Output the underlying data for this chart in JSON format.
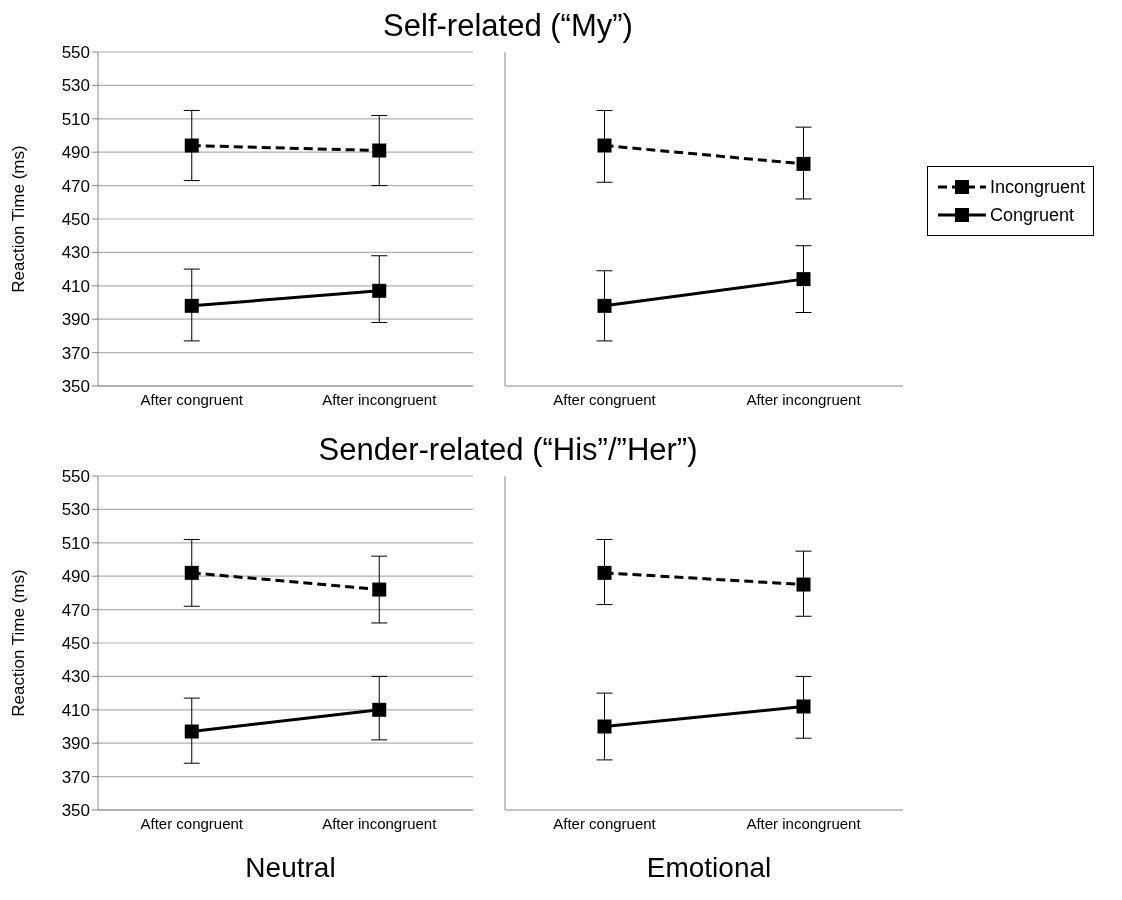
{
  "chart_data": [
    {
      "type": "line",
      "title": "Self-related (“My”)",
      "ylabel": "Reaction Time (ms)",
      "categories": [
        "After congruent",
        "After incongruent"
      ],
      "ylim": [
        350,
        550
      ],
      "yticks": [
        350,
        370,
        390,
        410,
        430,
        450,
        470,
        490,
        510,
        530,
        550
      ],
      "grid": "y",
      "marker": "square",
      "legend": false,
      "series": [
        {
          "color": "#000000",
          "line_style": "dashed",
          "values": [
            494,
            491
          ],
          "errors": [
            [
              473,
              515
            ],
            [
              470,
              512
            ]
          ]
        },
        {
          "color": "#000000",
          "line_style": "solid",
          "values": [
            398,
            407
          ],
          "errors": [
            [
              377,
              420
            ],
            [
              388,
              428
            ]
          ]
        }
      ]
    },
    {
      "type": "line",
      "categories": [
        "After congruent",
        "After incongruent"
      ],
      "ylim": [
        350,
        550
      ],
      "yticks": [
        350,
        370,
        390,
        410,
        430,
        450,
        470,
        490,
        510,
        530,
        550
      ],
      "tick_labels": "x",
      "grid": "y",
      "marker": "square",
      "legend": "right",
      "series": [
        {
          "name": "Incongruent",
          "color": "#000000",
          "line_style": "dashed",
          "values": [
            494,
            483
          ],
          "errors": [
            [
              472,
              515
            ],
            [
              462,
              505
            ]
          ]
        },
        {
          "name": "Congruent",
          "color": "#000000",
          "line_style": "solid",
          "values": [
            398,
            414
          ],
          "errors": [
            [
              377,
              419
            ],
            [
              394,
              434
            ]
          ]
        }
      ]
    },
    {
      "type": "line",
      "title": "Sender-related (“His”/”Her”)",
      "ylabel": "Reaction Time (ms)",
      "xlabel": "Neutral",
      "categories": [
        "After congruent",
        "After incongruent"
      ],
      "ylim": [
        350,
        550
      ],
      "yticks": [
        350,
        370,
        390,
        410,
        430,
        450,
        470,
        490,
        510,
        530,
        550
      ],
      "grid": "y",
      "marker": "square",
      "legend": false,
      "series": [
        {
          "color": "#000000",
          "line_style": "dashed",
          "values": [
            492,
            482
          ],
          "errors": [
            [
              472,
              512
            ],
            [
              462,
              502
            ]
          ]
        },
        {
          "color": "#000000",
          "line_style": "solid",
          "values": [
            397,
            410
          ],
          "errors": [
            [
              378,
              417
            ],
            [
              392,
              430
            ]
          ]
        }
      ]
    },
    {
      "type": "line",
      "xlabel": "Emotional",
      "categories": [
        "After congruent",
        "After incongruent"
      ],
      "ylim": [
        350,
        550
      ],
      "yticks": [
        350,
        370,
        390,
        410,
        430,
        450,
        470,
        490,
        510,
        530,
        550
      ],
      "tick_labels": "x",
      "grid": "y",
      "marker": "square",
      "legend": false,
      "series": [
        {
          "color": "#000000",
          "line_style": "dashed",
          "values": [
            492,
            485
          ],
          "errors": [
            [
              473,
              512
            ],
            [
              466,
              505
            ]
          ]
        },
        {
          "color": "#000000",
          "line_style": "solid",
          "values": [
            400,
            412
          ],
          "errors": [
            [
              380,
              420
            ],
            [
              393,
              430
            ]
          ]
        }
      ]
    }
  ]
}
